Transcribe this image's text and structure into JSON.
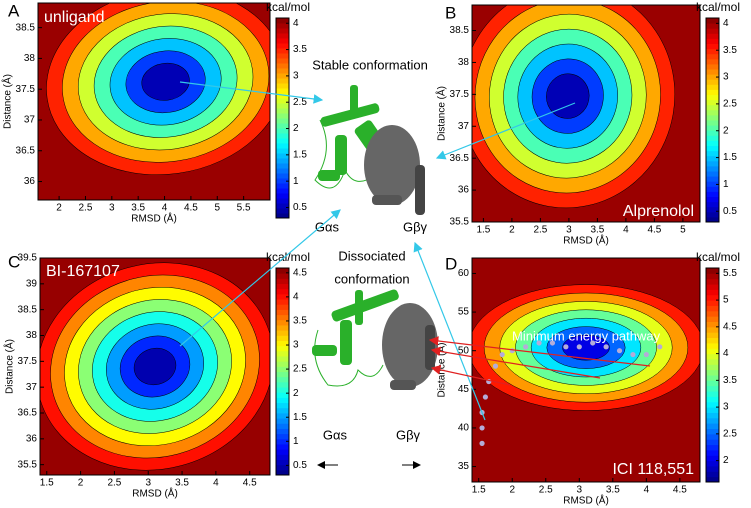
{
  "chart_data": [
    {
      "type": "contour",
      "panel_label": "A",
      "title": "unligand",
      "xlabel": "RMSD (Å)",
      "ylabel": "Distance (Å)",
      "colorbar_label": "kcal/mol",
      "xlim": [
        1.6,
        6.0
      ],
      "xticks": [
        2,
        2.5,
        3,
        3.5,
        4,
        4.5,
        5,
        5.5
      ],
      "ylim": [
        35.7,
        38.9
      ],
      "yticks": [
        36,
        36.5,
        37,
        37.5,
        38,
        38.5
      ],
      "zlim": [
        0.3,
        4.1
      ],
      "zticks": [
        0.5,
        1,
        1.5,
        2,
        2.5,
        3,
        3.5,
        4
      ]
    },
    {
      "type": "contour",
      "panel_label": "B",
      "title": "Alprenolol",
      "xlabel": "RMSD (Å)",
      "ylabel": "Distance (Å)",
      "colorbar_label": "kcal/mol",
      "xlim": [
        1.3,
        5.3
      ],
      "xticks": [
        1.5,
        2,
        2.5,
        3,
        3.5,
        4,
        4.5,
        5
      ],
      "ylim": [
        35.5,
        38.9
      ],
      "yticks": [
        35.5,
        36,
        36.5,
        37,
        37.5,
        38,
        38.5
      ],
      "zlim": [
        0.3,
        4.1
      ],
      "zticks": [
        0.5,
        1,
        1.5,
        2,
        2.5,
        3,
        3.5,
        4
      ]
    },
    {
      "type": "contour",
      "panel_label": "C",
      "title": "BI-167107",
      "xlabel": "RMSD (Å)",
      "ylabel": "Distance (Å)",
      "colorbar_label": "kcal/mol",
      "xlim": [
        1.4,
        4.8
      ],
      "xticks": [
        1.5,
        2,
        2.5,
        3,
        3.5,
        4,
        4.5
      ],
      "ylim": [
        35.3,
        39.5
      ],
      "yticks": [
        35.5,
        36,
        36.5,
        37,
        37.5,
        38,
        38.5,
        39,
        39.5
      ],
      "zlim": [
        0.3,
        4.6
      ],
      "zticks": [
        0.5,
        1,
        1.5,
        2,
        2.5,
        3,
        3.5,
        4,
        4.5
      ]
    },
    {
      "type": "contour",
      "panel_label": "D",
      "title": "ICI 118,551",
      "xlabel": "RMSD (Å)",
      "ylabel": "Distance (Å)",
      "colorbar_label": "kcal/mol",
      "annotation": "Minimum energy pathway",
      "xlim": [
        1.4,
        4.8
      ],
      "xticks": [
        1.5,
        2,
        2.5,
        3,
        3.5,
        4,
        4.5
      ],
      "ylim": [
        33,
        62
      ],
      "yticks": [
        35,
        40,
        45,
        50,
        55,
        60
      ],
      "zlim": [
        1.6,
        5.6
      ],
      "zticks": [
        2,
        2.5,
        3,
        3.5,
        4,
        4.5,
        5,
        5.5
      ],
      "path": {
        "color": "#b4acd8",
        "x": [
          1.55,
          1.55,
          1.55,
          1.6,
          1.65,
          1.75,
          1.85,
          2.0,
          2.2,
          2.4,
          2.6,
          2.8,
          3.0,
          3.2,
          3.4,
          3.6,
          3.8,
          4.0,
          4.2
        ],
        "y": [
          38,
          40,
          42,
          44,
          46,
          48,
          49.5,
          50,
          50.5,
          51,
          51,
          50.5,
          50.5,
          51,
          50.5,
          50,
          49.5,
          49.5,
          50.5
        ]
      }
    }
  ],
  "figure": {
    "stable": "Stable conformation",
    "dissociated_1": "Dissociated",
    "dissociated_2": "conformation",
    "g_alpha_top": "Gαs",
    "g_beta_top": "Gβγ",
    "g_alpha_bottom": "Gαs",
    "g_beta_bottom": "Gβγ"
  }
}
